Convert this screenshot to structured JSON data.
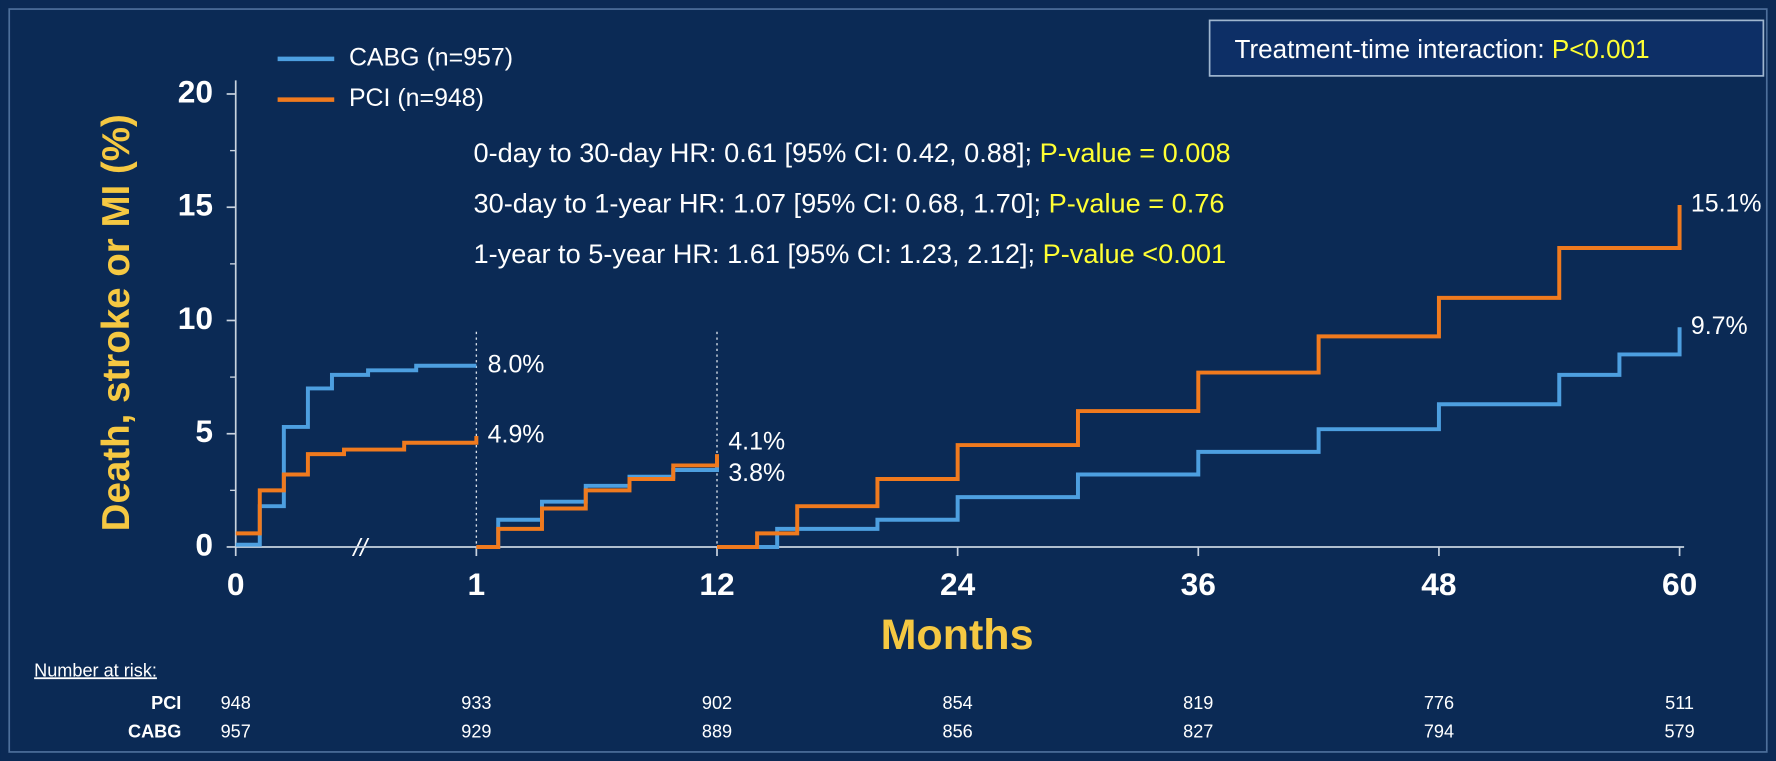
{
  "chart_data": {
    "type": "line",
    "step": true,
    "y_label": "Death, stroke or MI (%)",
    "x_label": "Months",
    "xlim": [
      0,
      60
    ],
    "xticks": [
      0,
      1,
      12,
      24,
      36,
      48,
      60
    ],
    "ylim": [
      0,
      20.6
    ],
    "yticks": [
      0,
      5,
      10,
      15,
      20
    ],
    "yminorticks": [
      2.5,
      7.5,
      12.5,
      17.5
    ],
    "landmarks": [
      1,
      12
    ],
    "series": [
      {
        "name": "CABG (n=957)",
        "color": "#4d9fe0",
        "x": [
          0,
          0.1,
          0.2,
          0.3,
          0.4,
          0.55,
          0.75,
          1,
          null,
          1,
          2,
          4,
          6,
          8,
          10,
          12,
          null,
          12,
          15,
          20,
          24,
          30,
          36,
          42,
          48,
          54,
          57,
          60
        ],
        "values": [
          0.1,
          1.8,
          5.3,
          7.0,
          7.6,
          7.8,
          8.0,
          8.0,
          null,
          0,
          1.2,
          2.0,
          2.7,
          3.1,
          3.4,
          3.8,
          null,
          0,
          0.8,
          1.2,
          2.2,
          3.2,
          4.2,
          5.2,
          6.3,
          7.6,
          8.5,
          9.7
        ],
        "value_labels": [
          null,
          null,
          null,
          null,
          null,
          null,
          null,
          "8.0%",
          null,
          null,
          null,
          null,
          null,
          null,
          null,
          "3.8%",
          null,
          null,
          null,
          null,
          null,
          null,
          null,
          null,
          null,
          null,
          null,
          "9.7%"
        ]
      },
      {
        "name": "PCI (n=948)",
        "color": "#f07a1e",
        "x": [
          0,
          0.1,
          0.2,
          0.3,
          0.45,
          0.7,
          1,
          null,
          1,
          2,
          4,
          6,
          8,
          10,
          12,
          null,
          12,
          14,
          16,
          20,
          24,
          30,
          36,
          42,
          48,
          54,
          60
        ],
        "values": [
          0.6,
          2.5,
          3.2,
          4.1,
          4.3,
          4.6,
          4.9,
          null,
          0,
          0.8,
          1.7,
          2.5,
          3.0,
          3.6,
          4.1,
          null,
          0,
          0.6,
          1.8,
          3.0,
          4.5,
          6.0,
          7.7,
          9.3,
          11.0,
          13.2,
          15.1
        ],
        "value_labels": [
          null,
          null,
          null,
          null,
          null,
          null,
          "4.9%",
          null,
          null,
          null,
          null,
          null,
          null,
          null,
          "4.1%",
          null,
          null,
          null,
          null,
          null,
          null,
          null,
          null,
          null,
          null,
          null,
          "15.1%"
        ]
      }
    ],
    "annotations": [
      {
        "text": "0-day to 30-day HR: 0.61 [95% CI: 0.42, 0.88];",
        "highlight": "P-value = 0.008"
      },
      {
        "text": "30-day to 1-year HR: 1.07 [95% CI: 0.68, 1.70];",
        "highlight": "P-value = 0.76"
      },
      {
        "text": "1-year to 5-year HR: 1.61 [95% CI: 1.23, 2.12];",
        "highlight": "P-value <0.001"
      }
    ],
    "interaction": {
      "text": "Treatment-time interaction:",
      "highlight": "P<0.001"
    },
    "risk_table": {
      "title": "Number at risk:",
      "rows": [
        {
          "name": "PCI",
          "values": [
            948,
            933,
            902,
            854,
            819,
            776,
            511
          ]
        },
        {
          "name": "CABG",
          "values": [
            957,
            929,
            889,
            856,
            827,
            794,
            579
          ]
        }
      ]
    }
  }
}
